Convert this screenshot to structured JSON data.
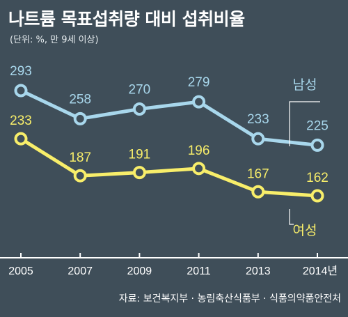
{
  "title": "나트륨 목표섭취량 대비 섭취비율",
  "subtitle": "(단위: %, 만 9세 이상)",
  "source": "자료: 보건복지부 · 농림축산식품부 · 식품의약품안전처",
  "colors": {
    "background": "#3f4e59",
    "male": "#a8d7ec",
    "female": "#f8ee6a",
    "axis": "#ffffff"
  },
  "chart_data": {
    "type": "line",
    "categories": [
      "2005",
      "2007",
      "2009",
      "2011",
      "2013",
      "2014년"
    ],
    "series": [
      {
        "name": "남성",
        "values": [
          293,
          258,
          270,
          279,
          233,
          225
        ]
      },
      {
        "name": "여성",
        "values": [
          233,
          187,
          191,
          196,
          167,
          162
        ]
      }
    ],
    "title": "나트륨 목표섭취량 대비 섭취비율",
    "subtitle": "(단위: %, 만 9세 이상)",
    "ylabel": "%",
    "ylim": [
      150,
      300
    ],
    "grid": false,
    "legend": "series labels at right end"
  }
}
